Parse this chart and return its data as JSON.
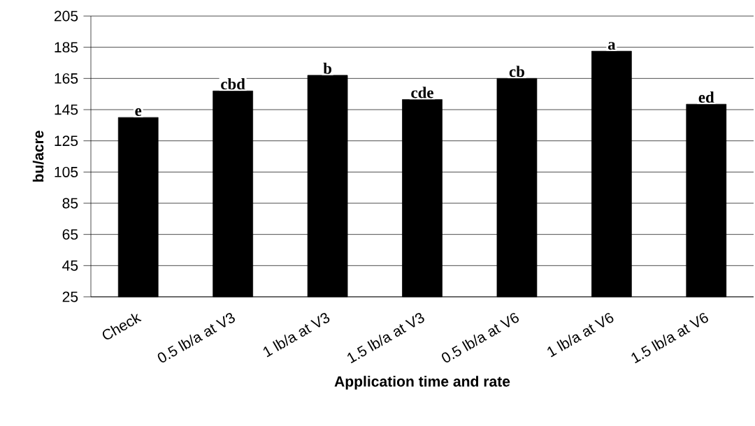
{
  "chart_data": {
    "type": "bar",
    "xlabel": "Application time and rate",
    "ylabel": "bu/acre",
    "categories": [
      "Check",
      "0.5 lb/a at V3",
      "1 lb/a at V3",
      "1.5 lb/a at V3",
      "0.5 lb/a at V6",
      "1 lb/a at V6",
      "1.5 lb/a at V6"
    ],
    "values": [
      140,
      157,
      167,
      151.5,
      165,
      182.5,
      148.5
    ],
    "color": "#000000",
    "ylim": [
      25,
      205
    ],
    "yticks": [
      25,
      45,
      65,
      85,
      105,
      125,
      145,
      165,
      185,
      205
    ],
    "grid": "y",
    "annotations": [
      {
        "text": "e",
        "x": "Check",
        "y": 140
      },
      {
        "text": "cbd",
        "x": "0.5 lb/a at V3",
        "y": 157
      },
      {
        "text": "b",
        "x": "1 lb/a at V3",
        "y": 167
      },
      {
        "text": "cde",
        "x": "1.5 lb/a at V3",
        "y": 151.5
      },
      {
        "text": "cb",
        "x": "0.5 lb/a at V6",
        "y": 165
      },
      {
        "text": "a",
        "x": "1 lb/a at V6",
        "y": 182.5
      },
      {
        "text": "ed",
        "x": "1.5 lb/a at V6",
        "y": 148.5
      }
    ]
  }
}
